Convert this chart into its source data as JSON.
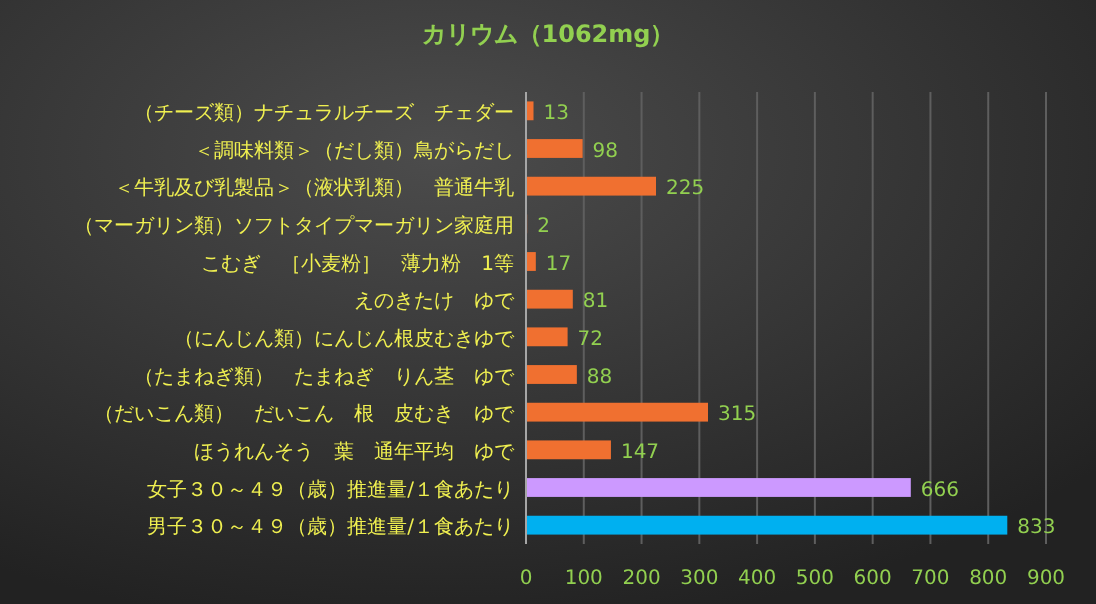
{
  "chart_data": {
    "type": "bar",
    "orientation": "horizontal",
    "title": "カリウム（1062mg）",
    "categories": [
      "（チーズ類）ナチュラルチーズ　チェダー",
      "＜調味料類＞（だし類）鳥がらだし",
      "＜牛乳及び乳製品＞（液状乳類）　普通牛乳",
      "（マーガリン類）ソフトタイプマーガリン家庭用",
      "こむぎ　［小麦粉］　薄力粉　1等",
      "えのきたけ　ゆで",
      "（にんじん類）にんじん根皮むきゆで",
      "（たまねぎ類）　たまねぎ　りん茎　ゆで",
      "（だいこん類）　だいこん　根　皮むき　ゆで",
      "ほうれんそう　葉　通年平均　ゆで",
      "女子３０～４９（歳）推進量/１食あたり",
      "男子３０～４９（歳）推進量/１食あたり"
    ],
    "values": [
      13,
      98,
      225,
      2,
      17,
      81,
      72,
      88,
      315,
      147,
      666,
      833
    ],
    "colors": [
      "#f07030",
      "#f07030",
      "#f07030",
      "#f07030",
      "#f07030",
      "#f07030",
      "#f07030",
      "#f07030",
      "#f07030",
      "#f07030",
      "#cc99ff",
      "#00b0f0"
    ],
    "xlim": [
      0,
      900
    ],
    "xticks": [
      0,
      100,
      200,
      300,
      400,
      500,
      600,
      700,
      800,
      900
    ],
    "grid": "x",
    "data_labels": true
  }
}
